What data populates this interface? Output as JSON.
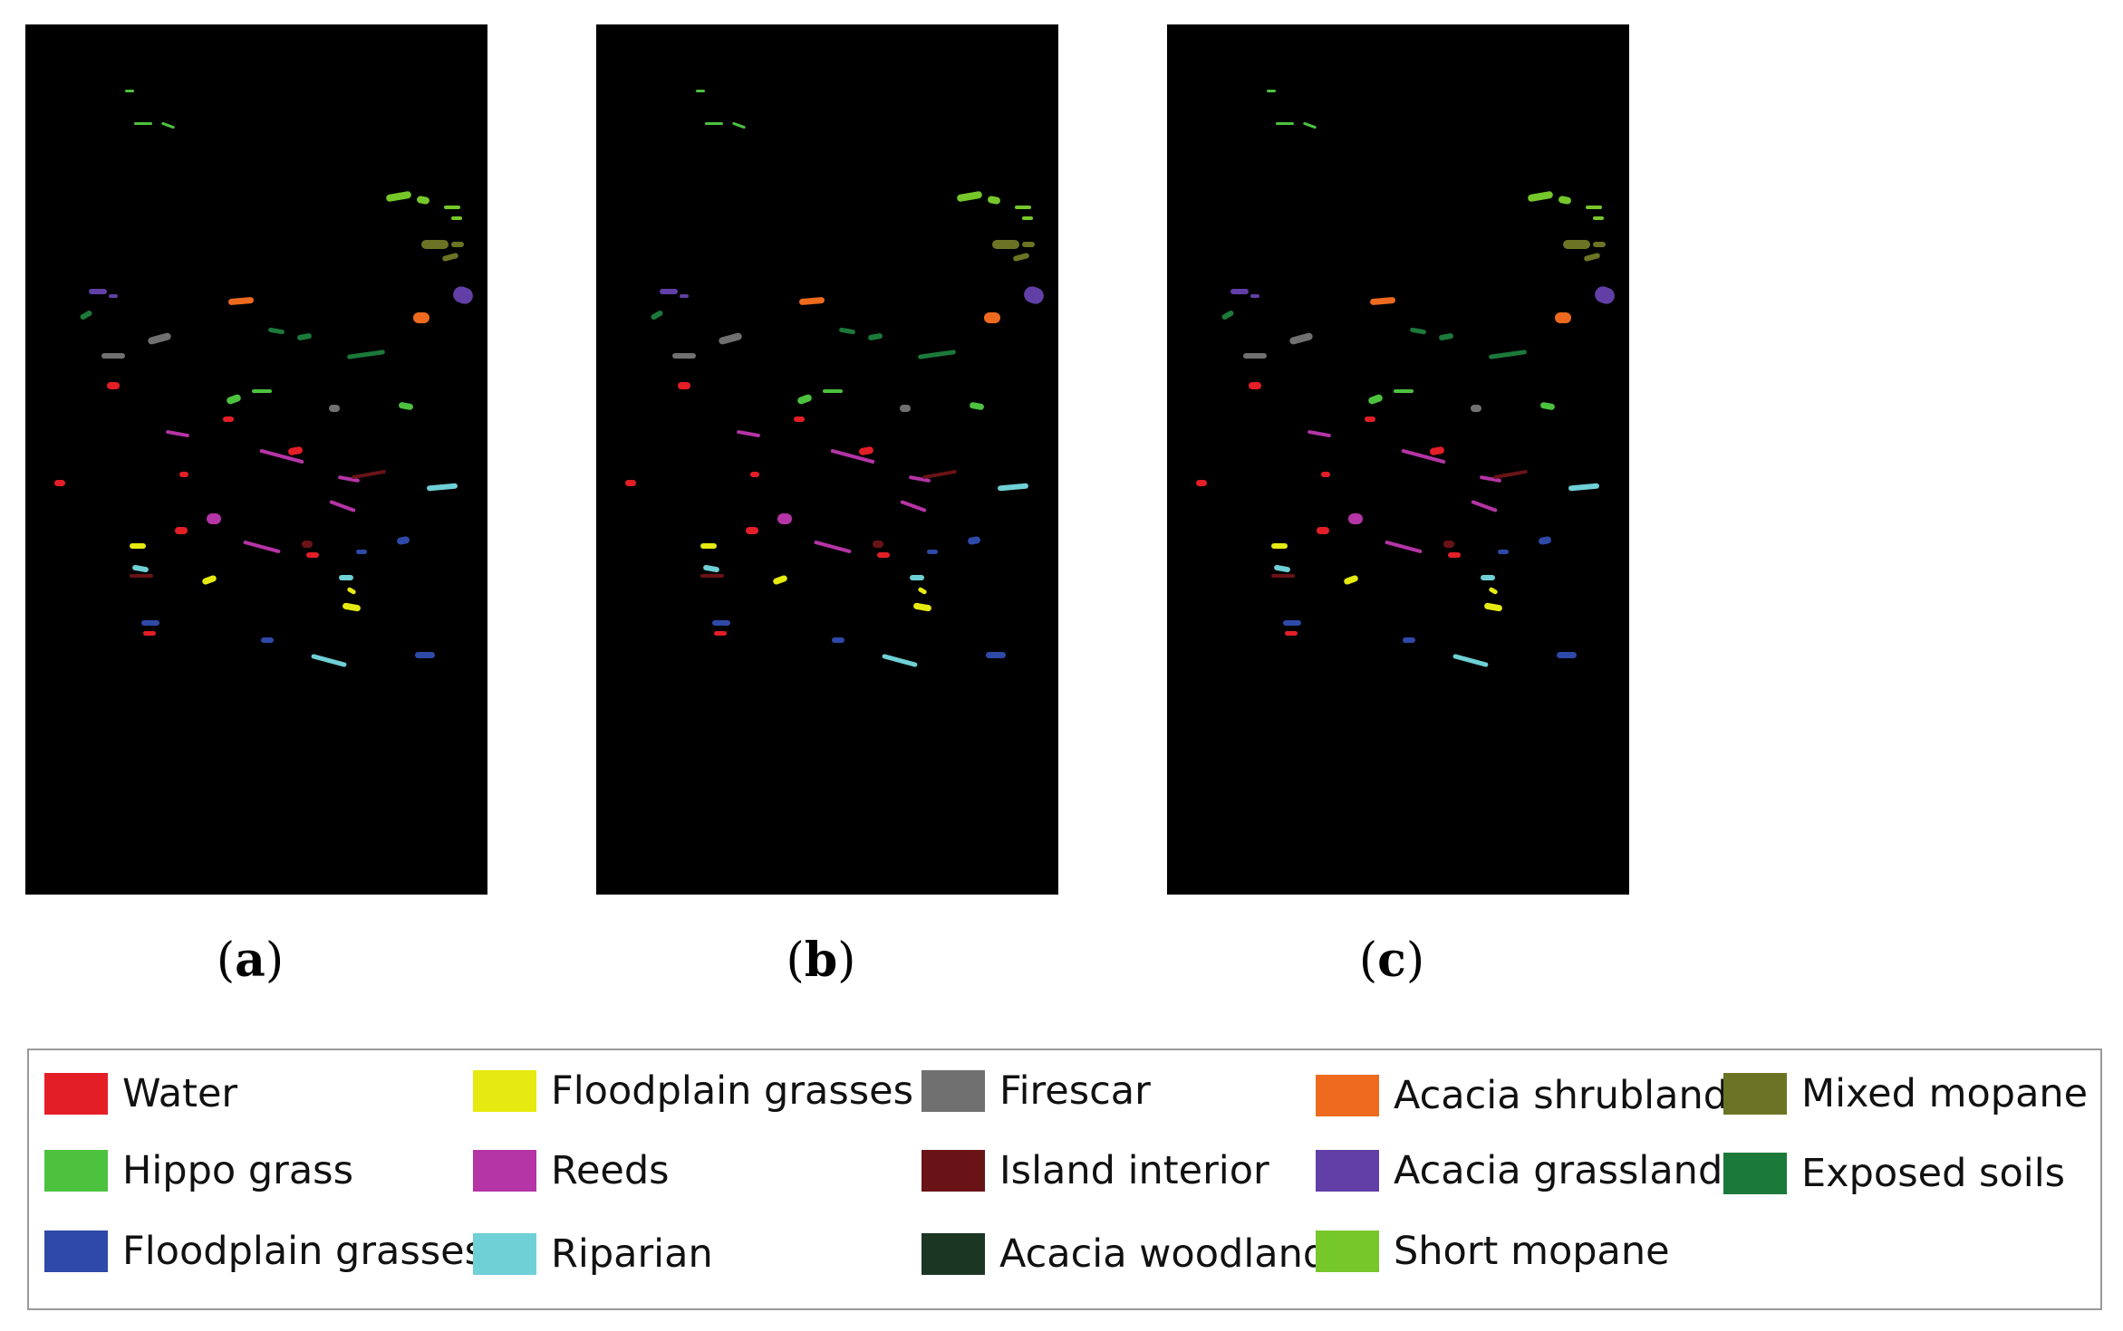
{
  "captions": {
    "a": "a",
    "b": "b",
    "c": "c"
  },
  "legend": [
    {
      "label": "Water",
      "color": "#e41e26"
    },
    {
      "label": "Hippo grass",
      "color": "#4cc23f"
    },
    {
      "label": "Floodplain grasses 1",
      "color": "#2e49a8"
    },
    {
      "label": "Floodplain grasses 2",
      "color": "#e6ea10"
    },
    {
      "label": "Reeds",
      "color": "#b534a6"
    },
    {
      "label": "Riparian",
      "color": "#6fd0d6"
    },
    {
      "label": "Firescar",
      "color": "#707070"
    },
    {
      "label": "Island interior",
      "color": "#6a1317"
    },
    {
      "label": "Acacia woodlands",
      "color": "#1c3624"
    },
    {
      "label": "Acacia shrublands",
      "color": "#ee6a1e"
    },
    {
      "label": "Acacia grasslands",
      "color": "#623fa6"
    },
    {
      "label": "Short mopane",
      "color": "#76c72a"
    },
    {
      "label": "Mixed mopane",
      "color": "#6b7424"
    },
    {
      "label": "Exposed soils",
      "color": "#1b7a3a"
    }
  ]
}
